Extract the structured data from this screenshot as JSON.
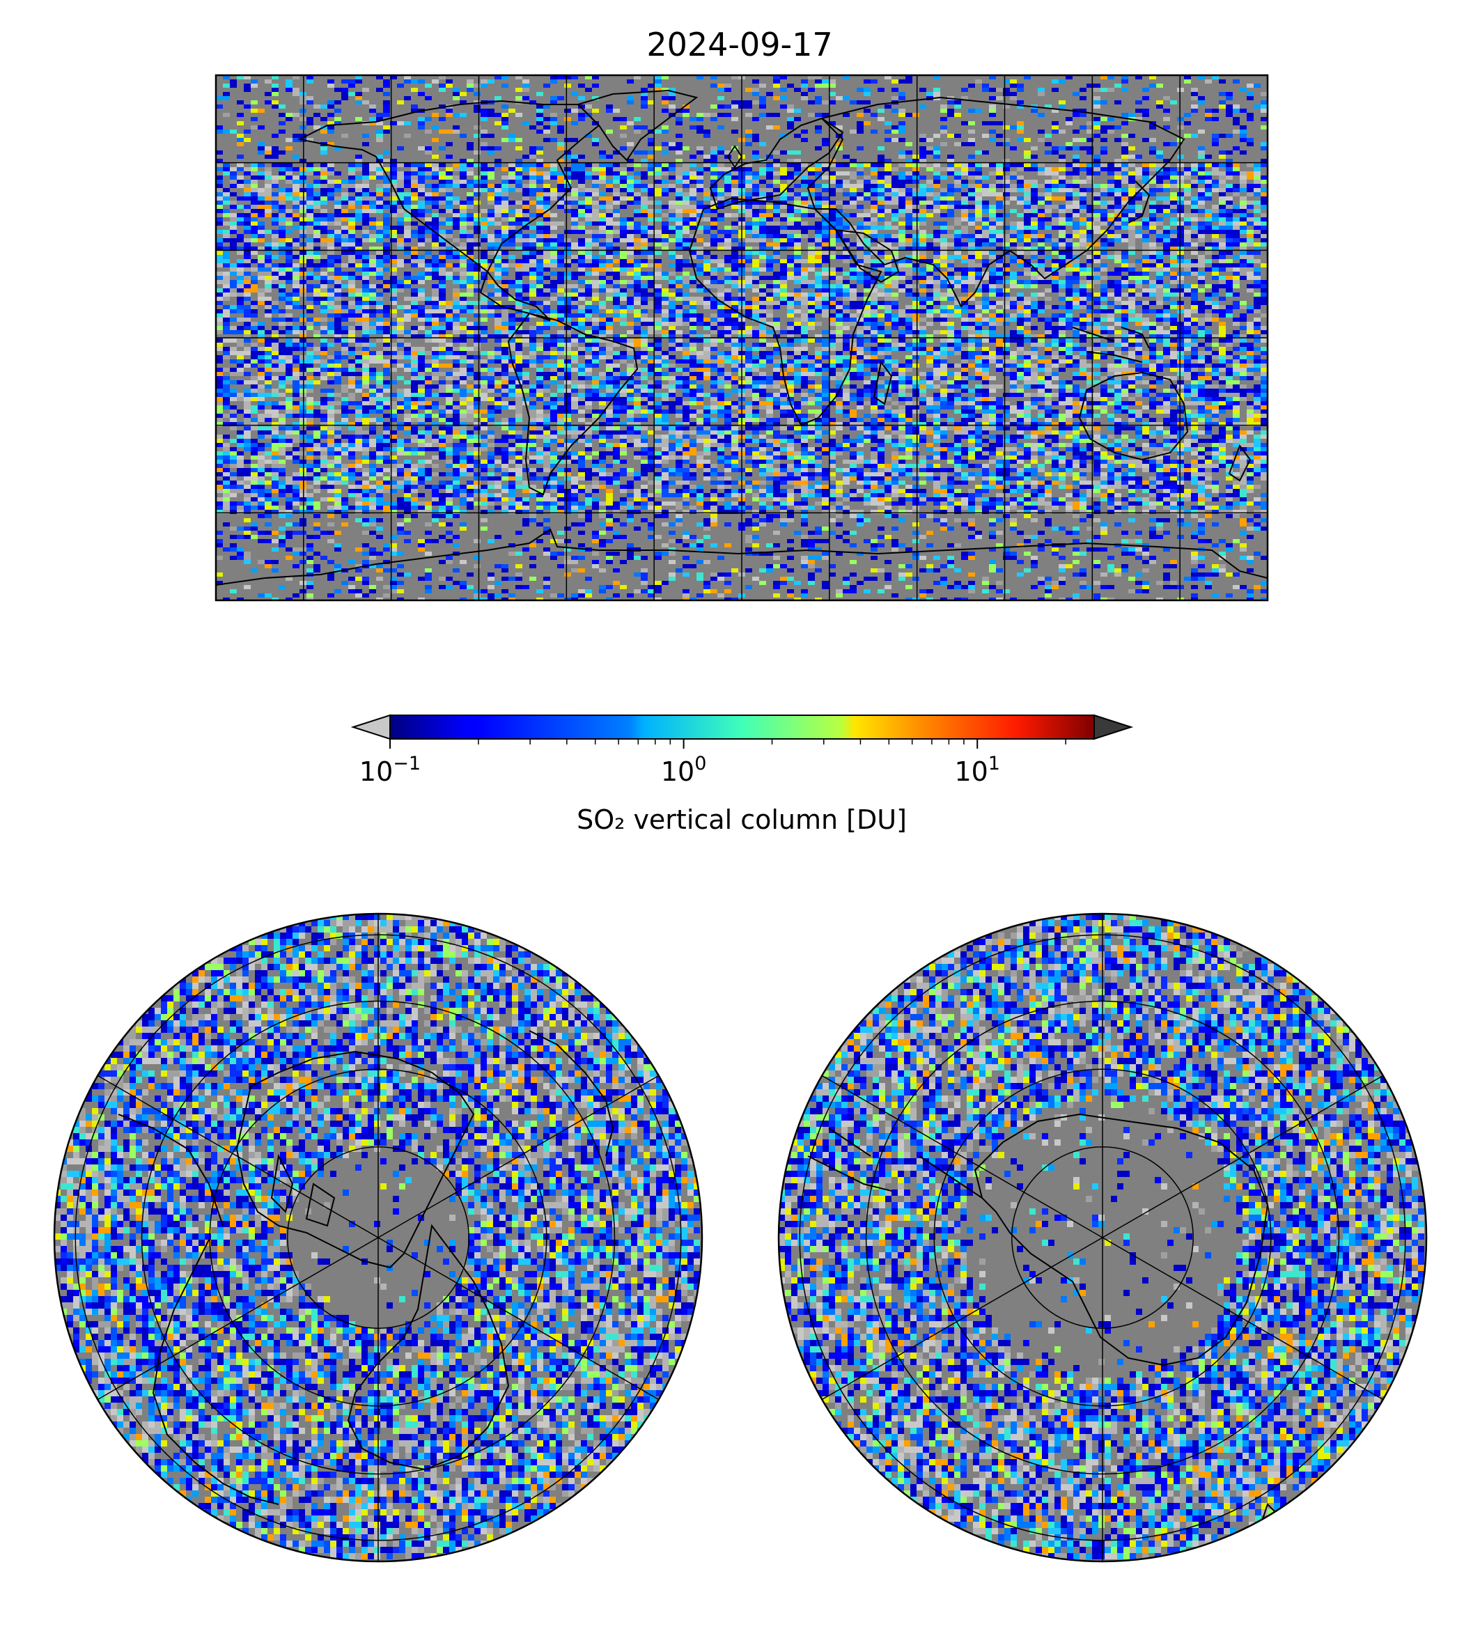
{
  "figure": {
    "title": "2024-09-17"
  },
  "colorbar": {
    "label": "SO₂ vertical column [DU]",
    "scale": "log",
    "vmin": 0.1,
    "vmax": 25,
    "colormap": "jet",
    "extend": "both",
    "under_color": "#c8c8c8",
    "over_color": "#3a3a3a",
    "ticks": [
      {
        "value": 0.1,
        "base": "10",
        "exp": "−1"
      },
      {
        "value": 1,
        "base": "10",
        "exp": "0"
      },
      {
        "value": 10,
        "base": "10",
        "exp": "1"
      }
    ]
  },
  "maps": {
    "global": {
      "projection": "plate-carree",
      "graticule_lon_step_deg": 30,
      "graticule_lat_step_deg": 30,
      "background_color": "#808080"
    },
    "north_polar": {
      "projection": "north-polar-stereographic",
      "graticule_lat_rings_deg": [
        80,
        60,
        40,
        20
      ],
      "meridian_step_deg": 60,
      "background_color": "#808080"
    },
    "south_polar": {
      "projection": "south-polar-stereographic",
      "graticule_lat_rings_deg": [
        -80,
        -60,
        -40,
        -20
      ],
      "meridian_step_deg": 60,
      "background_color": "#808080"
    }
  }
}
